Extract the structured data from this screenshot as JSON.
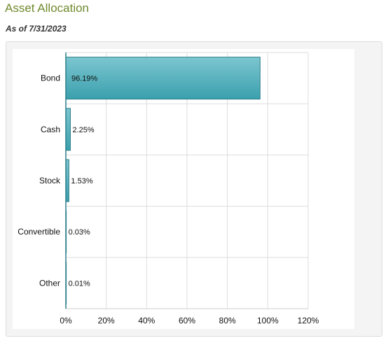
{
  "header": {
    "title": "Asset Allocation",
    "as_of": "As of 7/31/2023"
  },
  "colors": {
    "bar_fill_top": "#7cc6d0",
    "bar_fill_bottom": "#3aa0ad",
    "bar_stroke": "#2e7f8b",
    "grid": "#dddddd",
    "axis": "#2e7f8b"
  },
  "chart_data": {
    "type": "bar",
    "orientation": "horizontal",
    "categories": [
      "Bond",
      "Cash",
      "Stock",
      "Convertible",
      "Other"
    ],
    "values": [
      96.19,
      2.25,
      1.53,
      0.03,
      0.01
    ],
    "value_labels": [
      "96.19%",
      "2.25%",
      "1.53%",
      "0.03%",
      "0.01%"
    ],
    "xlim": [
      0,
      120
    ],
    "x_ticks": [
      0,
      20,
      40,
      60,
      80,
      100,
      120
    ],
    "x_tick_labels": [
      "0%",
      "20%",
      "40%",
      "60%",
      "80%",
      "100%",
      "120%"
    ],
    "grid": true,
    "legend": "none"
  }
}
